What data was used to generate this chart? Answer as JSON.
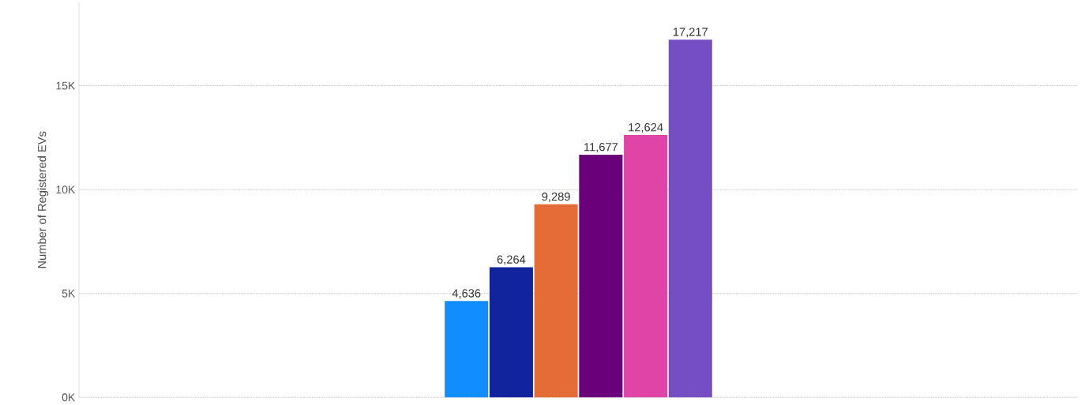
{
  "chart_data": {
    "type": "bar",
    "ylabel": "Number of Registered EVs",
    "categories": [
      null
    ],
    "series": [
      {
        "color": "#118dff",
        "values": [
          4636
        ],
        "value_labels": [
          "4,636"
        ]
      },
      {
        "color": "#12239e",
        "values": [
          6264
        ],
        "value_labels": [
          "6,264"
        ]
      },
      {
        "color": "#e66c37",
        "values": [
          9289
        ],
        "value_labels": [
          "9,289"
        ]
      },
      {
        "color": "#6b007b",
        "values": [
          11677
        ],
        "value_labels": [
          "11,677"
        ]
      },
      {
        "color": "#e044a7",
        "values": [
          12624
        ],
        "value_labels": [
          "12,624"
        ]
      },
      {
        "color": "#744ec2",
        "values": [
          17217
        ],
        "value_labels": [
          "17,217"
        ]
      }
    ],
    "ylim": [
      0,
      19000
    ],
    "yticks": [
      {
        "value": 0,
        "label": "0K"
      },
      {
        "value": 5000,
        "label": "5K"
      },
      {
        "value": 10000,
        "label": "10K"
      },
      {
        "value": 15000,
        "label": "15K"
      }
    ],
    "grid": "y"
  }
}
